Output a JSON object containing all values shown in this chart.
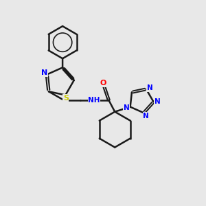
{
  "background_color": "#e8e8e8",
  "line_color": "#1a1a1a",
  "bond_width": 1.8,
  "colors": {
    "N": "#0000ff",
    "O": "#ff0000",
    "S": "#cccc00",
    "C": "#1a1a1a"
  }
}
